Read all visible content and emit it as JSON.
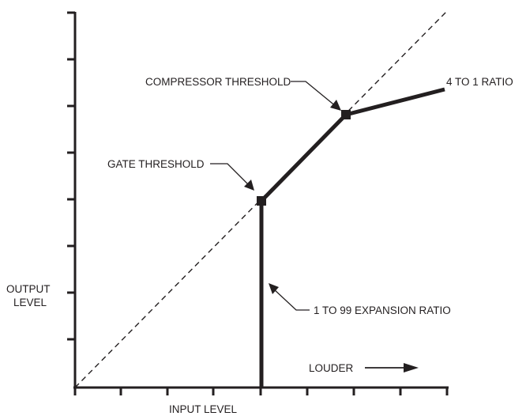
{
  "diagram": {
    "labels": {
      "compressor_threshold": "COMPRESSOR THRESHOLD",
      "ratio_4_to_1": "4 TO 1 RATIO",
      "gate_threshold": "GATE THRESHOLD",
      "output_level_line1": "OUTPUT",
      "output_level_line2": "LEVEL",
      "expansion_ratio": "1 TO 99 EXPANSION RATIO",
      "louder": "LOUDER",
      "input_level": "INPUT LEVEL"
    },
    "colors": {
      "line": "#231f20",
      "background": "#ffffff"
    }
  }
}
